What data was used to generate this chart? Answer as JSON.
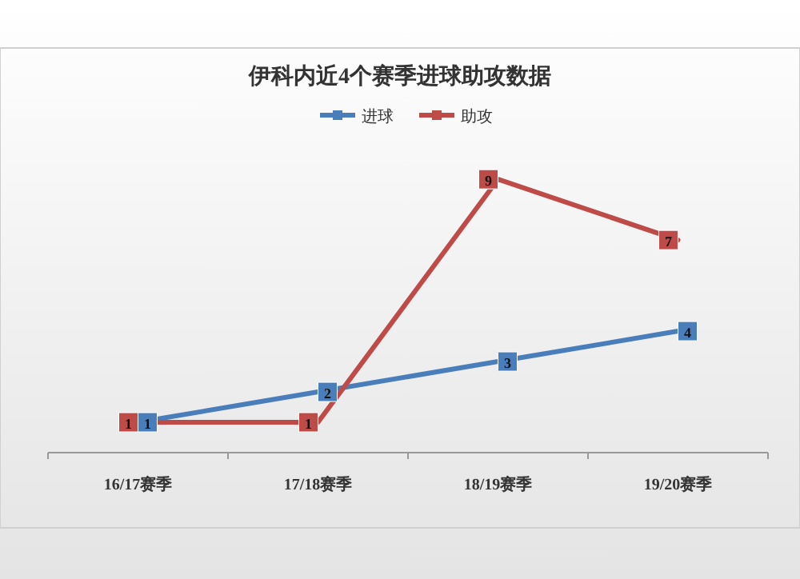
{
  "chart_data": {
    "type": "line",
    "title": "伊科内近4个赛季进球助攻数据",
    "categories": [
      "16/17赛季",
      "17/18赛季",
      "18/19赛季",
      "19/20赛季"
    ],
    "series": [
      {
        "name": "进球",
        "color": "#4a7ebb",
        "values": [
          1,
          2,
          3,
          4
        ]
      },
      {
        "name": "助攻",
        "color": "#be4b48",
        "values": [
          1,
          1,
          9,
          7
        ]
      }
    ],
    "data_labels": true,
    "legend": "top",
    "marker": "square"
  }
}
